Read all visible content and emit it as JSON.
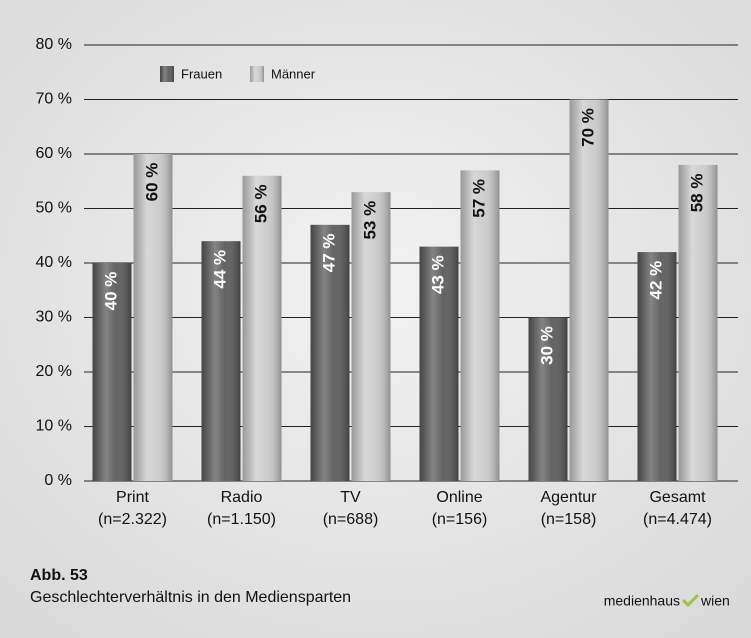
{
  "chart_data": {
    "type": "bar",
    "categories": [
      [
        "Print",
        "(n=2.322)"
      ],
      [
        "Radio",
        "(n=1.150)"
      ],
      [
        "TV",
        "(n=688)"
      ],
      [
        "Online",
        "(n=156)"
      ],
      [
        "Agentur",
        "(n=158)"
      ],
      [
        "Gesamt",
        "(n=4.474)"
      ]
    ],
    "series": [
      {
        "name": "Frauen",
        "color": "#5b5b5b",
        "values": [
          40,
          44,
          47,
          43,
          30,
          42
        ],
        "value_labels": [
          "40 %",
          "44 %",
          "47 %",
          "43 %",
          "30 %",
          "42 %"
        ]
      },
      {
        "name": "Männer",
        "color": "#cbcbcb",
        "values": [
          60,
          56,
          53,
          57,
          70,
          58
        ],
        "value_labels": [
          "60 %",
          "56 %",
          "53 %",
          "57 %",
          "70 %",
          "58 %"
        ]
      }
    ],
    "ylim": [
      0,
      80
    ],
    "yticks": [
      {
        "value": 0,
        "label": "0 %"
      },
      {
        "value": 10,
        "label": "10 %"
      },
      {
        "value": 20,
        "label": "20 %"
      },
      {
        "value": 30,
        "label": "30 %"
      },
      {
        "value": 40,
        "label": "40 %"
      },
      {
        "value": 50,
        "label": "50 %"
      },
      {
        "value": 60,
        "label": "60 %"
      },
      {
        "value": 70,
        "label": "70 %"
      },
      {
        "value": 80,
        "label": "80 %"
      }
    ],
    "grid": true,
    "figure_number": "Abb. 53",
    "caption": "Geschlechterverhältnis in den Mediensparten",
    "source": [
      "medienhaus",
      "wien"
    ]
  }
}
